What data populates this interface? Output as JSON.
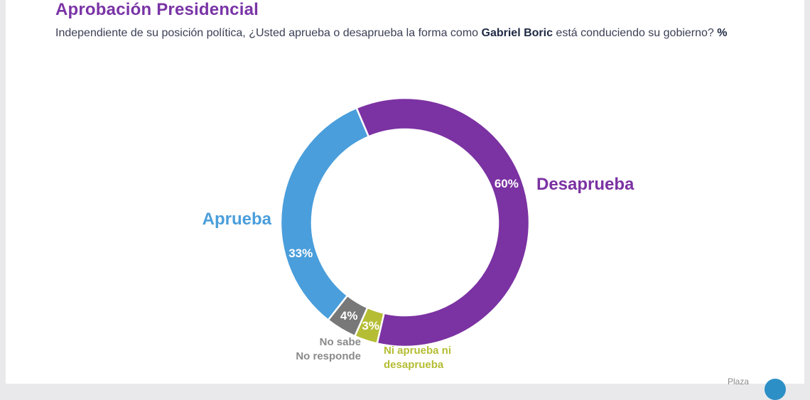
{
  "header": {
    "title": "Aprobación Presidencial",
    "subtitle_pre": "Independiente de su posición política, ¿Usted aprueba o desaprueba la forma como ",
    "subtitle_name": "Gabriel Boric",
    "subtitle_post": " está conduciendo su gobierno? ",
    "subtitle_unit": "%"
  },
  "chart_data": {
    "type": "pie",
    "variant": "donut",
    "unit": "%",
    "slices": [
      {
        "key": "desaprueba",
        "label": [
          "Desaprueba"
        ],
        "value": 60,
        "value_label": "60%",
        "color": "#7b32a2",
        "label_color": "#7b32a2"
      },
      {
        "key": "ni-aprueba-ni-desaprueba",
        "label": [
          "Ni aprueba ni",
          "desaprueba"
        ],
        "value": 3,
        "value_label": "3%",
        "color": "#b5bd34",
        "label_color": "#b5bd34"
      },
      {
        "key": "no-sabe-no-responde",
        "label": [
          "No sabe",
          "No responde"
        ],
        "value": 4,
        "value_label": "4%",
        "color": "#787878",
        "label_color": "#8a8a8a"
      },
      {
        "key": "aprueba",
        "label": [
          "Aprueba"
        ],
        "value": 33,
        "value_label": "33%",
        "color": "#4a9edb",
        "label_color": "#4a9edb"
      }
    ]
  },
  "footer": {
    "brand": "Plaza"
  }
}
